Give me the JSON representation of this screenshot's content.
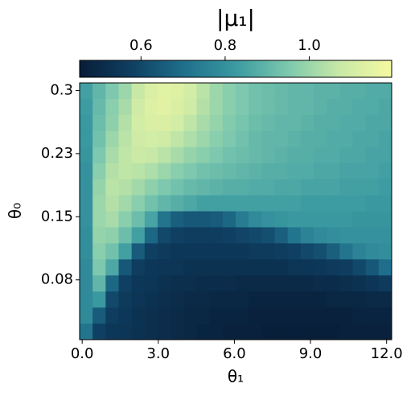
{
  "chart_data": {
    "type": "heatmap",
    "colorbar_label": "|μ₁|",
    "xlabel": "θ₁",
    "ylabel": "θ₀",
    "xlim": [
      -0.1,
      12.2
    ],
    "ylim": [
      0.004,
      0.309
    ],
    "xticks": [
      {
        "value": 0,
        "label": "0.0"
      },
      {
        "value": 3,
        "label": "3.0"
      },
      {
        "value": 6,
        "label": "6.0"
      },
      {
        "value": 9,
        "label": "9.0"
      },
      {
        "value": 12,
        "label": "12.0"
      }
    ],
    "yticks": [
      {
        "value": 0.075,
        "label": "0.08"
      },
      0.15,
      {
        "value": 0.225,
        "label": "0.23"
      },
      0.3
    ],
    "clim": [
      0.454,
      1.196
    ],
    "cticks": [
      0.6,
      0.8,
      {
        "value": 1,
        "label": "1.0"
      }
    ],
    "colormap": [
      "#081d38",
      "#0f3f62",
      "#1f6f8b",
      "#3a9aa1",
      "#7cc8ae",
      "#c8e9a6",
      "#f6f9a2"
    ],
    "z": [
      [
        0.84,
        0.9,
        0.95,
        1.0,
        1.07,
        1.12,
        1.14,
        1.13,
        1.1,
        1.05,
        1.0,
        0.97,
        0.95,
        0.93,
        0.92,
        0.91,
        0.9,
        0.9,
        0.89,
        0.89,
        0.88,
        0.88,
        0.87,
        0.87
      ],
      [
        0.83,
        0.91,
        0.97,
        1.02,
        1.09,
        1.13,
        1.14,
        1.12,
        1.09,
        1.04,
        1.0,
        0.97,
        0.95,
        0.93,
        0.92,
        0.91,
        0.9,
        0.9,
        0.89,
        0.88,
        0.88,
        0.87,
        0.87,
        0.86
      ],
      [
        0.82,
        0.92,
        0.98,
        1.04,
        1.1,
        1.12,
        1.12,
        1.1,
        1.06,
        1.02,
        0.99,
        0.96,
        0.94,
        0.92,
        0.91,
        0.9,
        0.9,
        0.89,
        0.88,
        0.88,
        0.87,
        0.87,
        0.86,
        0.86
      ],
      [
        0.82,
        0.93,
        1.0,
        1.05,
        1.09,
        1.1,
        1.09,
        1.06,
        1.03,
        1.0,
        0.97,
        0.95,
        0.93,
        0.91,
        0.9,
        0.9,
        0.89,
        0.88,
        0.88,
        0.87,
        0.87,
        0.86,
        0.86,
        0.85
      ],
      [
        0.81,
        0.95,
        1.02,
        1.06,
        1.08,
        1.07,
        1.05,
        1.02,
        0.99,
        0.97,
        0.95,
        0.93,
        0.92,
        0.91,
        0.9,
        0.89,
        0.88,
        0.88,
        0.87,
        0.87,
        0.86,
        0.86,
        0.85,
        0.85
      ],
      [
        0.8,
        0.97,
        1.04,
        1.06,
        1.05,
        1.03,
        1.0,
        0.97,
        0.95,
        0.93,
        0.92,
        0.91,
        0.9,
        0.89,
        0.88,
        0.88,
        0.87,
        0.87,
        0.86,
        0.86,
        0.85,
        0.85,
        0.85,
        0.84
      ],
      [
        0.8,
        0.99,
        1.05,
        1.04,
        1.01,
        0.98,
        0.95,
        0.93,
        0.91,
        0.9,
        0.89,
        0.88,
        0.88,
        0.87,
        0.87,
        0.86,
        0.86,
        0.85,
        0.85,
        0.85,
        0.84,
        0.84,
        0.84,
        0.83
      ],
      [
        0.8,
        1.0,
        1.04,
        1.01,
        0.97,
        0.93,
        0.9,
        0.88,
        0.86,
        0.84,
        0.84,
        0.84,
        0.84,
        0.84,
        0.84,
        0.84,
        0.84,
        0.83,
        0.83,
        0.83,
        0.83,
        0.83,
        0.82,
        0.82
      ],
      [
        0.8,
        1.0,
        1.02,
        0.97,
        0.92,
        0.85,
        0.72,
        0.66,
        0.64,
        0.64,
        0.65,
        0.68,
        0.74,
        0.78,
        0.8,
        0.81,
        0.82,
        0.82,
        0.82,
        0.82,
        0.82,
        0.81,
        0.81,
        0.81
      ],
      [
        0.79,
        0.99,
        0.98,
        0.92,
        0.84,
        0.68,
        0.6,
        0.58,
        0.57,
        0.57,
        0.57,
        0.58,
        0.59,
        0.6,
        0.62,
        0.66,
        0.72,
        0.76,
        0.78,
        0.79,
        0.8,
        0.8,
        0.8,
        0.8
      ],
      [
        0.79,
        0.97,
        0.93,
        0.84,
        0.65,
        0.58,
        0.56,
        0.55,
        0.55,
        0.55,
        0.55,
        0.55,
        0.55,
        0.56,
        0.56,
        0.57,
        0.58,
        0.6,
        0.62,
        0.66,
        0.72,
        0.76,
        0.78,
        0.79
      ],
      [
        0.78,
        0.95,
        0.86,
        0.64,
        0.57,
        0.55,
        0.54,
        0.54,
        0.53,
        0.53,
        0.53,
        0.53,
        0.53,
        0.53,
        0.53,
        0.53,
        0.54,
        0.54,
        0.55,
        0.56,
        0.57,
        0.6,
        0.64,
        0.7
      ],
      [
        0.78,
        0.9,
        0.68,
        0.58,
        0.55,
        0.54,
        0.53,
        0.52,
        0.52,
        0.51,
        0.51,
        0.51,
        0.5,
        0.5,
        0.5,
        0.5,
        0.5,
        0.5,
        0.51,
        0.51,
        0.52,
        0.53,
        0.54,
        0.56
      ],
      [
        0.78,
        0.82,
        0.6,
        0.56,
        0.54,
        0.53,
        0.52,
        0.51,
        0.5,
        0.5,
        0.49,
        0.49,
        0.49,
        0.48,
        0.48,
        0.48,
        0.48,
        0.48,
        0.48,
        0.49,
        0.49,
        0.49,
        0.5,
        0.5
      ],
      [
        0.78,
        0.65,
        0.57,
        0.55,
        0.53,
        0.52,
        0.51,
        0.5,
        0.49,
        0.49,
        0.48,
        0.48,
        0.48,
        0.47,
        0.47,
        0.47,
        0.47,
        0.47,
        0.47,
        0.47,
        0.47,
        0.48,
        0.48,
        0.48
      ],
      [
        0.72,
        0.58,
        0.55,
        0.54,
        0.53,
        0.52,
        0.51,
        0.5,
        0.49,
        0.48,
        0.48,
        0.47,
        0.47,
        0.47,
        0.46,
        0.46,
        0.46,
        0.46,
        0.46,
        0.46,
        0.47,
        0.47,
        0.47,
        0.47
      ]
    ]
  }
}
